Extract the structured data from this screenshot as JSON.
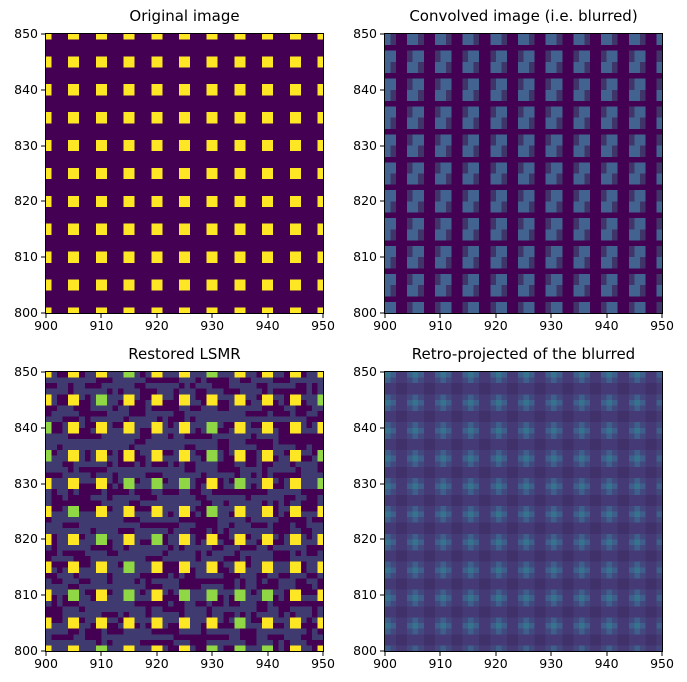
{
  "figure": {
    "background": "#ffffff",
    "colormap": "viridis"
  },
  "chart_data": [
    {
      "type": "heatmap",
      "position": "top-left",
      "title": "Original image",
      "xlabel": "",
      "ylabel": "",
      "xlim": [
        900,
        950
      ],
      "ylim": [
        800,
        850
      ],
      "x_ticks": [
        "900",
        "910",
        "920",
        "930",
        "940",
        "950"
      ],
      "y_ticks": [
        "850",
        "840",
        "830",
        "820",
        "810",
        "800"
      ],
      "colormap": "viridis",
      "description": "50x50 crop: zero-valued background with 2x2-pixel maximum-value dots on a regular grid every 5 pixels",
      "render": {
        "size": 50,
        "background": "#440154",
        "dot": {
          "spacing": 5,
          "size": 2,
          "colors": [
            "#fde725"
          ],
          "alt_probability": 0
        },
        "seed": 7
      }
    },
    {
      "type": "heatmap",
      "position": "top-right",
      "title": "Convolved image (i.e. blurred)",
      "xlabel": "",
      "ylabel": "",
      "xlim": [
        900,
        950
      ],
      "ylim": [
        800,
        850
      ],
      "x_ticks": [
        "900",
        "910",
        "920",
        "930",
        "940",
        "950"
      ],
      "y_ticks": [
        "850",
        "840",
        "830",
        "820",
        "810",
        "800"
      ],
      "colormap": "viridis",
      "description": "Dot grid convolved with a small zigzag PSF: each dot becomes a 3x4-pixel two-block S-shaped blue blob on the dark background",
      "render": {
        "size": 50,
        "background": "#440154",
        "dot": {
          "spacing": 5
        },
        "kernel": {
          "offset": [
            -1,
            -2
          ],
          "colors": [
            "#403569",
            "#42638f"
          ],
          "matrix": [
            [
              1,
              2,
              2
            ],
            [
              1,
              2,
              2
            ],
            [
              2,
              2,
              1
            ],
            [
              2,
              2,
              1
            ]
          ]
        },
        "seed": 3
      }
    },
    {
      "type": "heatmap",
      "position": "bottom-left",
      "title": "Restored LSMR",
      "xlabel": "",
      "ylabel": "",
      "xlim": [
        900,
        950
      ],
      "ylim": [
        800,
        850
      ],
      "x_ticks": [
        "900",
        "910",
        "920",
        "930",
        "940",
        "950"
      ],
      "y_ticks": [
        "850",
        "840",
        "830",
        "820",
        "810",
        "800"
      ],
      "colormap": "viridis",
      "description": "LSMR deconvolution result: recovered 2x2 dots (bright yellow, some greenish) over a noisy two-tone purple background with short streak artifacts",
      "render": {
        "size": 50,
        "background": "#440154",
        "noise": {
          "color": "#3f3a70",
          "probability": 0.52,
          "max_run": 3
        },
        "dot": {
          "spacing": 5,
          "size": 2,
          "colors": [
            "#fde725",
            "#8fd744"
          ],
          "alt_probability": 0.3
        },
        "seed": 42
      }
    },
    {
      "type": "heatmap",
      "position": "bottom-right",
      "title": "Retro-projected of the blurred",
      "xlabel": "",
      "ylabel": "",
      "xlim": [
        900,
        950
      ],
      "ylim": [
        800,
        850
      ],
      "x_ticks": [
        "900",
        "910",
        "920",
        "930",
        "940",
        "950"
      ],
      "y_ticks": [
        "850",
        "840",
        "830",
        "820",
        "810",
        "800"
      ],
      "colormap": "viridis",
      "description": "Back-projection of the blurred image: soft 5x5 teal-blue blobs every 5 pixels on a raised purple background",
      "render": {
        "size": 50,
        "background": "#40316b",
        "dot": {
          "spacing": 5
        },
        "kernel": {
          "offset": [
            -2,
            -2
          ],
          "colors": [
            "#453a75",
            "#42497f",
            "#3e5e8c",
            "#36748e"
          ],
          "matrix": [
            [
              0,
              1,
              1,
              1,
              0
            ],
            [
              1,
              2,
              3,
              2,
              1
            ],
            [
              1,
              3,
              4,
              3,
              1
            ],
            [
              1,
              2,
              3,
              2,
              1
            ],
            [
              0,
              1,
              1,
              1,
              0
            ]
          ]
        },
        "seed": 5
      }
    }
  ]
}
